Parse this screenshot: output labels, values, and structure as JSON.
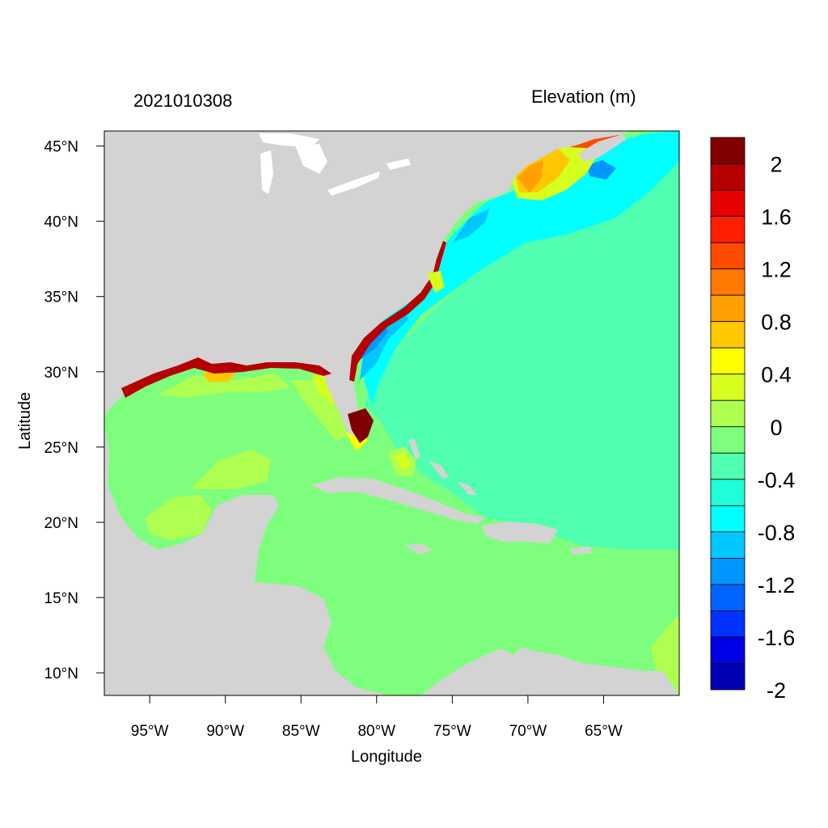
{
  "title_left": "2021010308",
  "title_right": "Elevation (m)",
  "x_axis": {
    "title": "Longitude",
    "ticks": [
      {
        "value": -95,
        "label": "95°W"
      },
      {
        "value": -90,
        "label": "90°W"
      },
      {
        "value": -85,
        "label": "85°W"
      },
      {
        "value": -80,
        "label": "80°W"
      },
      {
        "value": -75,
        "label": "75°W"
      },
      {
        "value": -70,
        "label": "70°W"
      },
      {
        "value": -65,
        "label": "65°W"
      }
    ],
    "range": [
      -98,
      -60
    ]
  },
  "y_axis": {
    "title": "Latitude",
    "ticks": [
      {
        "value": 45,
        "label": "45°N"
      },
      {
        "value": 40,
        "label": "40°N"
      },
      {
        "value": 35,
        "label": "35°N"
      },
      {
        "value": 30,
        "label": "30°N"
      },
      {
        "value": 25,
        "label": "25°N"
      },
      {
        "value": 20,
        "label": "20°N"
      },
      {
        "value": 15,
        "label": "15°N"
      },
      {
        "value": 10,
        "label": "10°N"
      }
    ],
    "range": [
      8.5,
      46
    ]
  },
  "colorbar": {
    "colors": [
      "#800000",
      "#b40000",
      "#e60000",
      "#ff1e00",
      "#ff4b00",
      "#ff7800",
      "#ffa000",
      "#ffc800",
      "#ffff00",
      "#d7ff1e",
      "#afff50",
      "#7dff7d",
      "#50ffaf",
      "#1effd7",
      "#00ffff",
      "#00c8ff",
      "#0096ff",
      "#0064ff",
      "#0032ff",
      "#0000e6",
      "#0000b4"
    ],
    "labels": [
      "2",
      "1.6",
      "1.2",
      "0.8",
      "0.4",
      "0",
      "-0.4",
      "-0.8",
      "-1.2",
      "-1.6",
      "-2"
    ]
  },
  "colors": {
    "land": "#d3d3d3",
    "lakes": "#ffffff"
  }
}
